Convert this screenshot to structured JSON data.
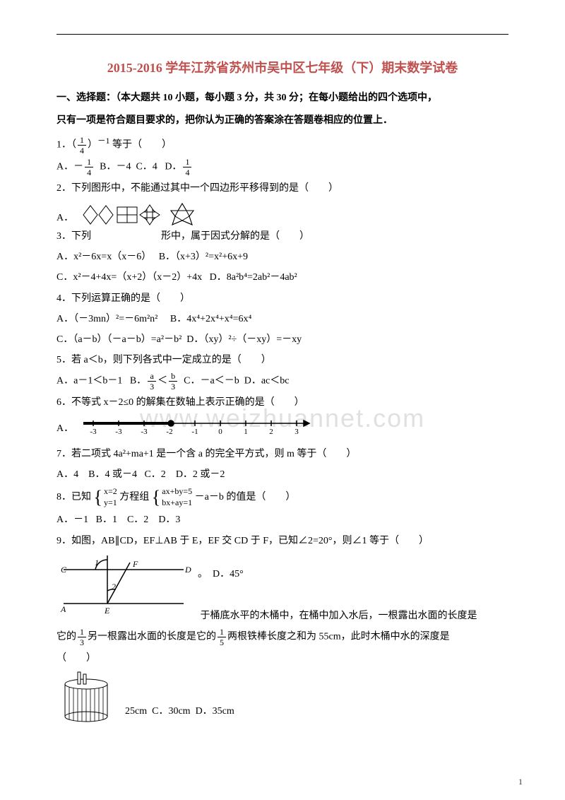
{
  "page_number": "1",
  "title": "2015-2016 学年江苏省苏州市吴中区七年级（下）期末数学试卷",
  "title_color": "#c0504d",
  "section1_header_a": "一、选择题：（本大题共 10 小题，每小题 3 分，共 30 分；在每小题给出的四个选项中，",
  "section1_header_b": "只有一项是符合题目要求的，把你认为正确的答案涂在答题卷相应的位置上．",
  "q1": {
    "stem_pre": "1．（",
    "stem_mid": "）",
    "stem_exp": "－1",
    "stem_post": " 等于（　　）",
    "optA_pre": "A．－",
    "optB": "B．－4",
    "optC": "C．4",
    "optD_pre": "D．",
    "frac_n": "1",
    "frac_d": "4"
  },
  "q2": {
    "stem": "2．下列图形中，不能通过其中一个四边形平移得到的是（　　）",
    "optA": "A．"
  },
  "q3_line": {
    "pre": "3．下列",
    "mid": "形中，属于因式分解的是（　　）"
  },
  "q3": {
    "optA": "A．x²－6x=x（x－6）",
    "optB": "B．（x+3）²=x²+6x+9",
    "optC": "C．x²－4+4x=（x+2）（x－2）+4x",
    "optD": "D．8a²b⁴=2ab²－4ab²"
  },
  "q4": {
    "stem": "4．下列运算正确的是（　　）",
    "optA": "A．（－3mn）²=－6m²n²",
    "optB": "B．4x⁴+2x⁴+x⁴=6x⁴",
    "optC": "C．（a－b）（－a－b）=a²－b²",
    "optD": "D．（xy）²÷（－xy）=－xy"
  },
  "q5": {
    "stem": "5．若 a＜b，则下列各式中一定成立的是（　　）",
    "optA": "A．a－1＜b－1",
    "optB_pre": "B．",
    "optB_mid": "＜",
    "frac_a_n": "a",
    "frac_a_d": "3",
    "frac_b_n": "b",
    "frac_b_d": "3",
    "optC": "C．－a＜－b",
    "optD": "D．ac＜bc"
  },
  "q6": {
    "stem": "6．不等式 x－2≤0 的解集在数轴上表示正确的是（　　）",
    "optA": "A．"
  },
  "q7": {
    "stem": "7．若二项式 4a²+ma+1 是一个含 a 的完全平方式，则 m 等于（　　）",
    "optA": "A．4",
    "optB": "B．4 或－4",
    "optC": "C．2",
    "optD": "D．2 或－2"
  },
  "q8": {
    "pre": "8．已知",
    "mid": "方程组",
    "post": "－a－b 的值是（　　）",
    "sys1a": "x=2",
    "sys1b": "y=1",
    "sys2a": "ax+by=5",
    "sys2b": "bx+ay=1",
    "optA": "A．－1",
    "optB": "B．1",
    "optC": "C．2",
    "optD": "D．3"
  },
  "q9": {
    "stem": "9．如图，AB∥CD，EF⊥AB 于 E，EF 交 CD 于 F，已知∠2=20°，则∠1 等于（　　）",
    "labC": "C",
    "labD": "D",
    "labA": "A",
    "labE": "E",
    "labF": "F",
    "lab1": "1",
    "lab2": "2",
    "lab_dot": "。",
    "optD": "D．45°"
  },
  "q10": {
    "line1_pre": "",
    "line1_mid": "于桶底水平的木桶中，在桶中加入水后，一根露出水面的长度是",
    "line2_pre": "它的",
    "f1n": "1",
    "f1d": "3",
    "line2_mid": "另一根露出水面的长度是它的",
    "f2n": "1",
    "f2d": "5",
    "line2_post": "两根铁棒长度之和为 55cm，此时木桶中水的深度是",
    "paren": "（　　）",
    "optB": "25cm",
    "optC": "C．30cm",
    "optD": "D．35cm"
  },
  "watermark": "www.weizhuannet.com",
  "numberline": {
    "ticks": [
      "-3",
      "-3",
      "-3",
      "-2",
      "-1",
      "0",
      "1",
      "2",
      "3"
    ],
    "stroke": "#000"
  }
}
